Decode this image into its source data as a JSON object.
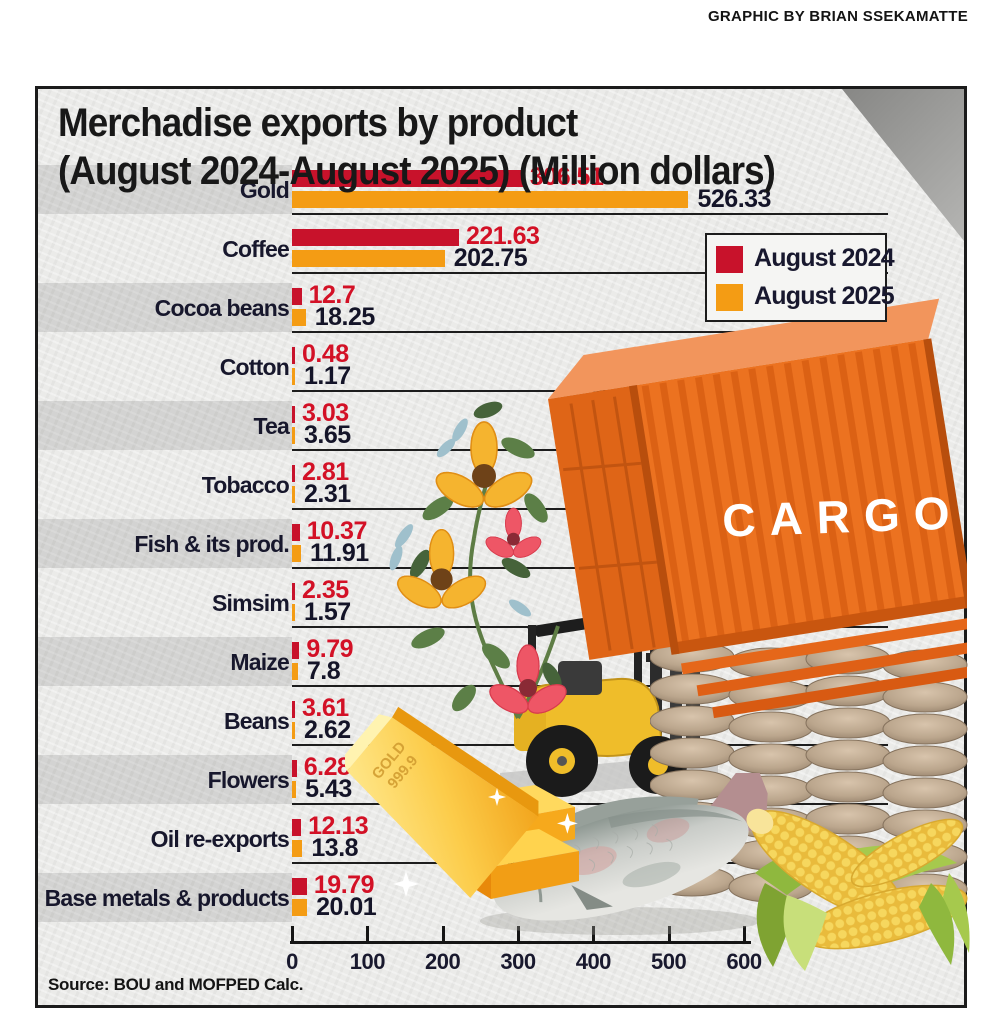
{
  "credit": "GRAPHIC BY BRIAN SSEKAMATTE",
  "title_line1": "Merchadise exports by product",
  "title_line2": "(August 2024-August 2025) (Million dollars)",
  "source": "Source: BOU and MOFPED Calc.",
  "container_label": "CARGO",
  "gold_bar_label_line1": "GOLD",
  "gold_bar_label_line2": "999.9",
  "colors": {
    "series_2024": "#c8122b",
    "series_2025": "#f49c14",
    "value_text_2024": "#d31126",
    "value_text_dark": "#141428",
    "label_text": "#17172c",
    "paper": "#ebebe9",
    "border": "#1b1b1b"
  },
  "legend": {
    "items": [
      {
        "label": "August 2024",
        "color": "#c8122b"
      },
      {
        "label": "August 2025",
        "color": "#f49c14"
      }
    ]
  },
  "chart_data": {
    "type": "bar",
    "orientation": "horizontal",
    "title": "Merchadise exports by product (August 2024-August 2025) (Million dollars)",
    "unit": "Million dollars",
    "categories": [
      "Gold",
      "Coffee",
      "Cocoa beans",
      "Cotton",
      "Tea",
      "Tobacco",
      "Fish & its prod.",
      "Simsim",
      "Maize",
      "Beans",
      "Flowers",
      "Oil re-exports",
      "Base metals & products"
    ],
    "series": [
      {
        "name": "August 2024",
        "color": "#c8122b",
        "values": [
          306.51,
          221.63,
          12.7,
          0.48,
          3.03,
          2.81,
          10.37,
          2.35,
          9.79,
          3.61,
          6.28,
          12.13,
          19.79
        ]
      },
      {
        "name": "August 2025",
        "color": "#f49c14",
        "values": [
          526.33,
          202.75,
          18.25,
          1.17,
          3.65,
          2.31,
          11.91,
          1.57,
          7.8,
          2.62,
          5.43,
          13.8,
          20.01
        ]
      }
    ],
    "x_axis": {
      "ticks": [
        0,
        100,
        200,
        300,
        400,
        500,
        600
      ],
      "range": [
        0,
        600
      ]
    },
    "legend_position": "upper right",
    "grid": false
  },
  "decorations": [
    "flowers-illustration",
    "cargo-container-illustration",
    "forklift-illustration",
    "grain-sacks-illustration",
    "gold-bars-illustration",
    "fish-illustration",
    "maize-cobs-illustration"
  ]
}
